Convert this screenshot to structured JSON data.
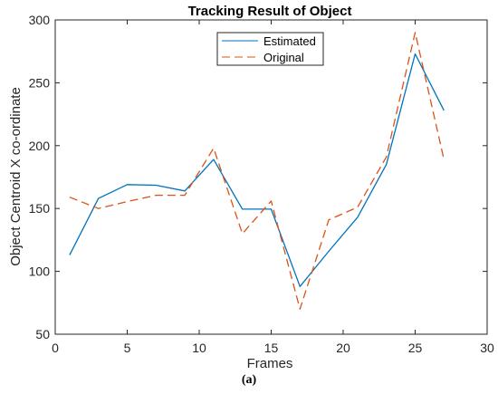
{
  "chart_data": {
    "type": "line",
    "title": "Tracking Result of Object",
    "xlabel": "Frames",
    "ylabel": "Object Centroid X co-ordinate",
    "xlim": [
      0,
      30
    ],
    "ylim": [
      50,
      300
    ],
    "xticks": [
      "0",
      "5",
      "10",
      "15",
      "20",
      "25",
      "30"
    ],
    "yticks": [
      "50",
      "100",
      "150",
      "200",
      "250",
      "300"
    ],
    "grid": false,
    "legend_position": "top-center",
    "x": [
      1,
      3,
      5,
      7,
      9,
      11,
      13,
      15,
      17,
      19,
      21,
      23,
      25,
      27
    ],
    "series": [
      {
        "name": "Estimated",
        "style": "solid",
        "color": "#0072BD",
        "values": [
          113,
          158,
          169,
          168.5,
          164,
          189,
          149.5,
          149.5,
          88,
          116,
          143,
          185,
          273,
          228
        ]
      },
      {
        "name": "Original",
        "style": "dashed",
        "color": "#D95319",
        "values": [
          159,
          150,
          155.5,
          160.5,
          160.5,
          198,
          130,
          156,
          70,
          141,
          151,
          191,
          290,
          189
        ]
      }
    ]
  },
  "caption": "(a)"
}
